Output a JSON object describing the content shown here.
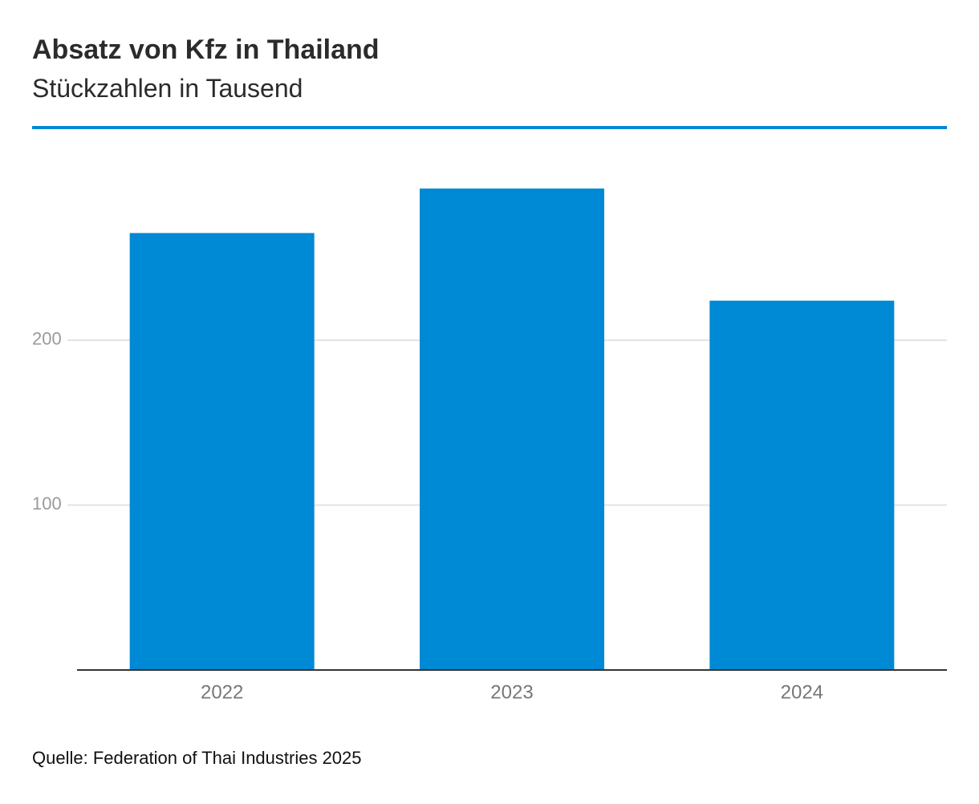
{
  "title": "Absatz von Kfz in Thailand",
  "subtitle": "Stückzahlen in Tausend",
  "source": "Quelle: Federation of Thai Industries 2025",
  "colors": {
    "accent": "#0089d4",
    "bar": "#0089d4",
    "gridline": "#e3e3e3",
    "axis": "#333333",
    "tick_label": "#9a9a9a",
    "category_label": "#777777"
  },
  "chart_data": {
    "type": "bar",
    "categories": [
      "2022",
      "2023",
      "2024"
    ],
    "values": [
      265,
      292,
      224
    ],
    "ylim": [
      0,
      300
    ],
    "yticks": [
      100,
      200
    ],
    "ytick_labels": [
      "100",
      "200"
    ],
    "grid": true,
    "xlabel": "",
    "ylabel": ""
  }
}
